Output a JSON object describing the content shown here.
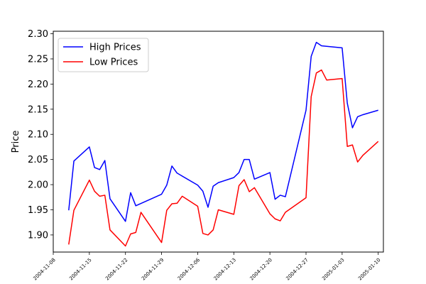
{
  "chart_data": {
    "type": "line",
    "ylabel": "Price",
    "xlabel": "",
    "title": "",
    "x_ticks": [
      "2004-11-08",
      "2004-11-15",
      "2004-11-22",
      "2004-11-29",
      "2004-12-06",
      "2004-12-13",
      "2004-12-20",
      "2004-12-27",
      "2005-01-03",
      "2005-01-10"
    ],
    "y_ticks": [
      "1.90",
      "1.95",
      "2.00",
      "2.05",
      "2.10",
      "2.15",
      "2.20",
      "2.25",
      "2.30"
    ],
    "xlim": [
      "2004-11-08",
      "2005-01-11"
    ],
    "ylim": [
      1.866,
      2.305
    ],
    "legend": {
      "position": "top-left"
    },
    "grid": false,
    "series": [
      {
        "name": "High Prices",
        "color": "#0000ff",
        "x": [
          "2004-11-11",
          "2004-11-12",
          "2004-11-15",
          "2004-11-16",
          "2004-11-17",
          "2004-11-18",
          "2004-11-19",
          "2004-11-22",
          "2004-11-23",
          "2004-11-24",
          "2004-11-29",
          "2004-11-30",
          "2004-12-01",
          "2004-12-02",
          "2004-12-06",
          "2004-12-07",
          "2004-12-08",
          "2004-12-09",
          "2004-12-10",
          "2004-12-13",
          "2004-12-14",
          "2004-12-15",
          "2004-12-16",
          "2004-12-17",
          "2004-12-20",
          "2004-12-21",
          "2004-12-22",
          "2004-12-23",
          "2004-12-27",
          "2004-12-28",
          "2004-12-29",
          "2004-12-30",
          "2004-12-31",
          "2005-01-03",
          "2005-01-04",
          "2005-01-05",
          "2005-01-06",
          "2005-01-07",
          "2005-01-10"
        ],
        "values": [
          1.949,
          2.047,
          2.075,
          2.034,
          2.03,
          2.048,
          1.972,
          1.927,
          1.984,
          1.958,
          1.981,
          1.999,
          2.037,
          2.023,
          1.999,
          1.987,
          1.955,
          1.997,
          2.004,
          2.014,
          2.024,
          2.05,
          2.05,
          2.011,
          2.024,
          1.971,
          1.979,
          1.976,
          2.148,
          2.255,
          2.283,
          2.276,
          2.275,
          2.272,
          2.162,
          2.113,
          2.135,
          2.139,
          2.148
        ]
      },
      {
        "name": "Low Prices",
        "color": "#ff0000",
        "x": [
          "2004-11-11",
          "2004-11-12",
          "2004-11-15",
          "2004-11-16",
          "2004-11-17",
          "2004-11-18",
          "2004-11-19",
          "2004-11-22",
          "2004-11-23",
          "2004-11-24",
          "2004-11-25",
          "2004-11-29",
          "2004-11-30",
          "2004-12-01",
          "2004-12-02",
          "2004-12-03",
          "2004-12-06",
          "2004-12-07",
          "2004-12-08",
          "2004-12-09",
          "2004-12-10",
          "2004-12-13",
          "2004-12-14",
          "2004-12-15",
          "2004-12-16",
          "2004-12-17",
          "2004-12-20",
          "2004-12-21",
          "2004-12-22",
          "2004-12-23",
          "2004-12-27",
          "2004-12-28",
          "2004-12-29",
          "2004-12-30",
          "2004-12-31",
          "2005-01-03",
          "2005-01-04",
          "2005-01-05",
          "2005-01-06",
          "2005-01-07",
          "2005-01-10"
        ],
        "values": [
          1.881,
          1.949,
          2.009,
          1.987,
          1.977,
          1.979,
          1.91,
          1.878,
          1.902,
          1.905,
          1.945,
          1.885,
          1.949,
          1.962,
          1.963,
          1.977,
          1.957,
          1.903,
          1.9,
          1.91,
          1.95,
          1.941,
          1.998,
          2.01,
          1.986,
          1.994,
          1.942,
          1.932,
          1.928,
          1.945,
          1.974,
          2.175,
          2.222,
          2.228,
          2.208,
          2.211,
          2.076,
          2.079,
          2.045,
          2.058,
          2.086
        ]
      }
    ]
  }
}
